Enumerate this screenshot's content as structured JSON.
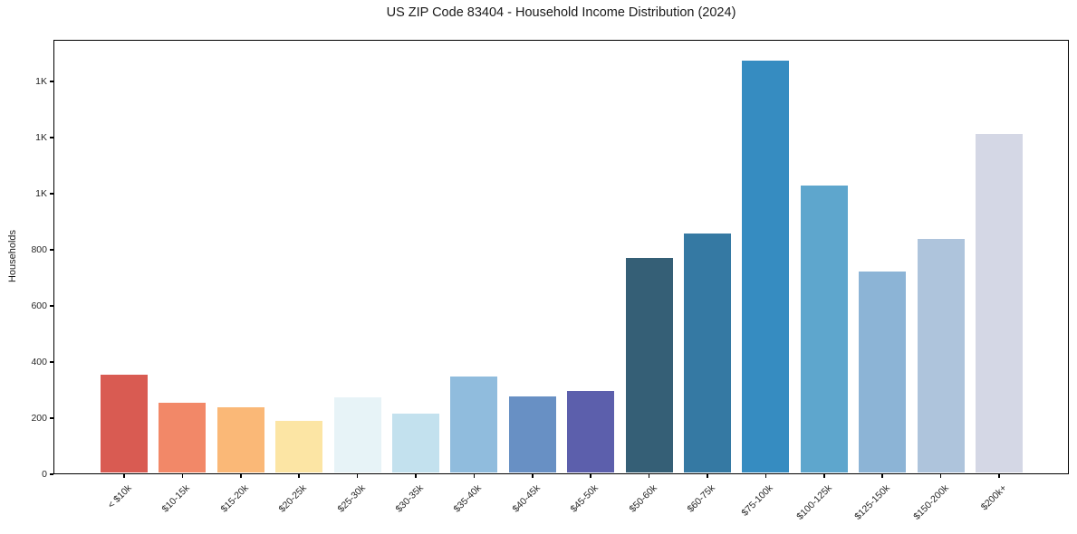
{
  "chart_data": {
    "type": "bar",
    "title": "US ZIP Code 83404 - Household Income Distribution (2024)",
    "xlabel": "",
    "ylabel": "Households",
    "categories": [
      "< $10k",
      "$10-15k",
      "$15-20k",
      "$20-25k",
      "$25-30k",
      "$30-35k",
      "$35-40k",
      "$40-45k",
      "$45-50k",
      "$50-60k",
      "$60-75k",
      "$75-100k",
      "$100-125k",
      "$125-150k",
      "$150-200k",
      "$200k+"
    ],
    "values": [
      355,
      255,
      238,
      190,
      275,
      215,
      348,
      278,
      298,
      770,
      858,
      1475,
      1030,
      722,
      840,
      1212
    ],
    "bar_colors": [
      "#d95b52",
      "#f28868",
      "#fab877",
      "#fce5a4",
      "#e7f3f7",
      "#c3e1ee",
      "#90bcdd",
      "#6890c4",
      "#5c5fac",
      "#355f76",
      "#3579a3",
      "#368cc1",
      "#5ea6cd",
      "#8cb4d6",
      "#aec4dc",
      "#d4d7e5"
    ],
    "ylim": [
      0,
      1549
    ],
    "yticks": {
      "values": [
        0,
        200,
        400,
        600,
        800,
        1000,
        1200,
        1400
      ],
      "labels": [
        "0",
        "200",
        "400",
        "600",
        "800",
        "1K",
        "1K",
        "1K"
      ]
    },
    "grid": "horizontal",
    "legend": "none",
    "background_color": "#ffffff",
    "grid_color": "#e9e9ee",
    "axis_color": "#000000",
    "xtick_rotation_deg": 45
  }
}
